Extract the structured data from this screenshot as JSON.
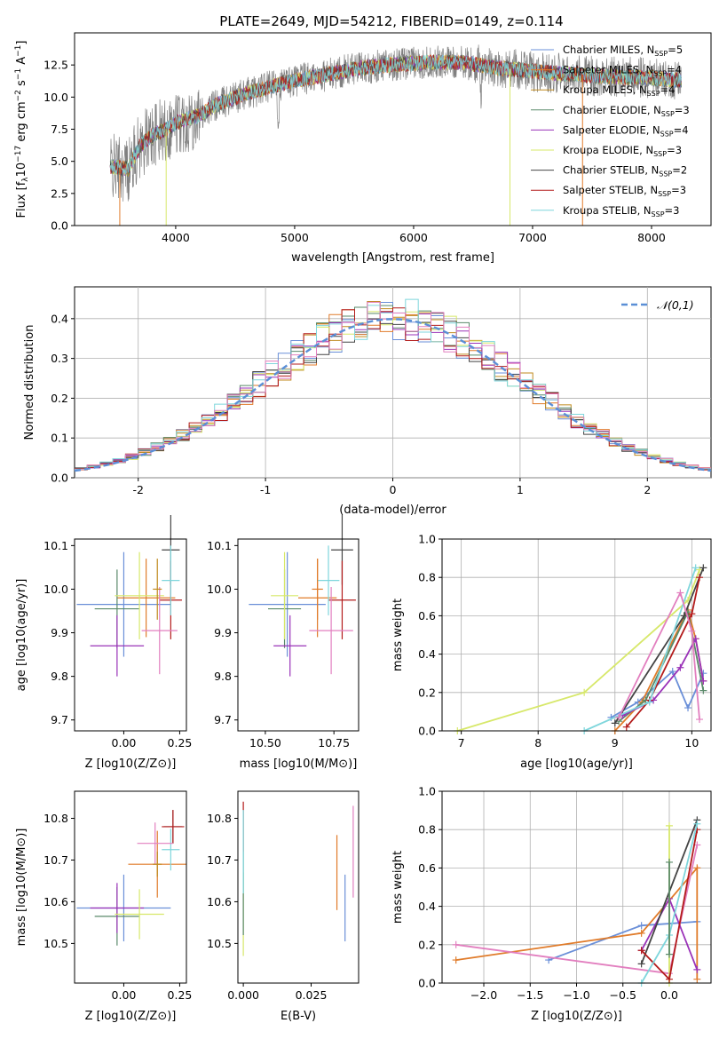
{
  "figure": {
    "title": "PLATE=2649, MJD=54212, FIBERID=0149, z=0.114"
  },
  "models": [
    {
      "label": "Chabrier MILES, N_SSP=5",
      "imf": "Chabrier",
      "lib": "MILES",
      "nssp": 5,
      "color": "#6a8fd8"
    },
    {
      "label": "Salpeter MILES, N_SSP=4",
      "imf": "Salpeter",
      "lib": "MILES",
      "nssp": 4,
      "color": "#e07b2a"
    },
    {
      "label": "Kroupa MILES, N_SSP=4",
      "imf": "Kroupa",
      "lib": "MILES",
      "nssp": 4,
      "color": "#c08a1e"
    },
    {
      "label": "Chabrier ELODIE, N_SSP=3",
      "imf": "Chabrier",
      "lib": "ELODIE",
      "nssp": 3,
      "color": "#5a8a6a"
    },
    {
      "label": "Salpeter ELODIE, N_SSP=4",
      "imf": "Salpeter",
      "lib": "ELODIE",
      "nssp": 4,
      "color": "#9a32b8"
    },
    {
      "label": "Kroupa ELODIE, N_SSP=3",
      "imf": "Kroupa",
      "lib": "ELODIE",
      "nssp": 3,
      "color": "#d7e86a"
    },
    {
      "label": "Chabrier STELIB, N_SSP=2",
      "imf": "Chabrier",
      "lib": "STELIB",
      "nssp": 2,
      "color": "#444444"
    },
    {
      "label": "Salpeter STELIB, N_SSP=3",
      "imf": "Salpeter",
      "lib": "STELIB",
      "nssp": 3,
      "color": "#b31b1b"
    },
    {
      "label": "Kroupa STELIB, N_SSP=3",
      "imf": "Kroupa",
      "lib": "STELIB",
      "nssp": 3,
      "color": "#7fd6dc"
    }
  ],
  "extra_colors": {
    "pink": "#e27fbf",
    "gray": "#808080",
    "dashed": "#5b8fd6"
  },
  "chart_data": [
    {
      "id": "spectrum",
      "type": "line",
      "title": "PLATE=2649, MJD=54212, FIBERID=0149, z=0.114",
      "xlabel": "wavelength [Angstrom, rest frame]",
      "ylabel": "Flux [f_λ 10^-17 erg cm^-2 s^-1 A^-1]",
      "xlim": [
        3150,
        8500
      ],
      "ylim": [
        0,
        15
      ],
      "xticks": [
        4000,
        5000,
        6000,
        7000,
        8000
      ],
      "yticks": [
        "0.0",
        "2.5",
        "5.0",
        "7.5",
        "10.0",
        "12.5"
      ],
      "data_range_x": [
        3450,
        8250
      ],
      "continuum": [
        [
          3450,
          4.6
        ],
        [
          3600,
          4.4
        ],
        [
          3700,
          6.2
        ],
        [
          3800,
          7.0
        ],
        [
          3900,
          7.4
        ],
        [
          4000,
          8.0
        ],
        [
          4100,
          8.3
        ],
        [
          4200,
          8.6
        ],
        [
          4300,
          9.2
        ],
        [
          4400,
          9.6
        ],
        [
          4600,
          10.3
        ],
        [
          4800,
          10.8
        ],
        [
          5000,
          11.3
        ],
        [
          5200,
          11.6
        ],
        [
          5500,
          12.2
        ],
        [
          5800,
          12.5
        ],
        [
          6100,
          12.7
        ],
        [
          6400,
          12.7
        ],
        [
          6700,
          12.3
        ],
        [
          7000,
          12.0
        ],
        [
          7300,
          11.8
        ],
        [
          7600,
          11.6
        ],
        [
          8000,
          11.5
        ],
        [
          8250,
          11.3
        ]
      ],
      "grid": false,
      "legend": "right"
    },
    {
      "id": "residuals",
      "type": "histogram",
      "xlabel": "(data-model)/error",
      "ylabel": "Normed distribution",
      "xlim": [
        -2.5,
        2.5
      ],
      "ylim": [
        0,
        0.48
      ],
      "xticks": [
        -2,
        -1,
        0,
        1,
        2
      ],
      "yticks": [
        "0.0",
        "0.1",
        "0.2",
        "0.3",
        "0.4"
      ],
      "bin_width": 0.1,
      "reference_curve": "N(0,1)",
      "legend_label": "𝒩(0,1)",
      "legend": "top-right",
      "grid": true
    },
    {
      "id": "age_vs_Z",
      "type": "errorbar",
      "xlabel": "Z [log10(Z/Z⊙)]",
      "ylabel": "age [log10(age/yr)]",
      "xlim": [
        -0.22,
        0.28
      ],
      "ylim": [
        9.675,
        10.115
      ],
      "xticks": [
        "0.00",
        "0.25"
      ],
      "yticks": [
        "9.7",
        "9.8",
        "9.9",
        "10.0",
        "10.1"
      ],
      "points": [
        {
          "c": "#6a8fd8",
          "x": 0.0,
          "y": 9.965,
          "xe": 0.21,
          "ye": 0.12
        },
        {
          "c": "#e07b2a",
          "x": 0.1,
          "y": 9.98,
          "xe": 0.13,
          "ye": 0.09
        },
        {
          "c": "#5a8a6a",
          "x": -0.03,
          "y": 9.955,
          "xe": 0.1,
          "ye": 0.09
        },
        {
          "c": "#9a32b8",
          "x": -0.03,
          "y": 9.87,
          "xe": 0.12,
          "ye": 0.07
        },
        {
          "c": "#d7e86a",
          "x": 0.07,
          "y": 9.985,
          "xe": 0.11,
          "ye": 0.1
        },
        {
          "c": "#444444",
          "x": 0.21,
          "y": 10.09,
          "xe": 0.04,
          "ye": 0.08
        },
        {
          "c": "#b31b1b",
          "x": 0.21,
          "y": 9.975,
          "xe": 0.05,
          "ye": 0.09
        },
        {
          "c": "#7fd6dc",
          "x": 0.21,
          "y": 10.02,
          "xe": 0.04,
          "ye": 0.08
        },
        {
          "c": "#e27fbf",
          "x": 0.16,
          "y": 9.905,
          "xe": 0.08,
          "ye": 0.1
        },
        {
          "c": "#c08a1e",
          "x": 0.15,
          "y": 10.0,
          "xe": 0.02,
          "ye": 0.07
        }
      ]
    },
    {
      "id": "age_vs_mass",
      "type": "errorbar",
      "xlabel": "mass [log10(M/M⊙)]",
      "ylabel": "",
      "xlim": [
        10.4,
        10.84
      ],
      "ylim": [
        9.675,
        10.115
      ],
      "xticks": [
        "10.50",
        "10.75"
      ],
      "yticks": [
        "9.7",
        "9.8",
        "9.9",
        "10.0",
        "10.1"
      ],
      "points": [
        {
          "c": "#6a8fd8",
          "x": 10.58,
          "y": 9.965,
          "xe": 0.14,
          "ye": 0.12
        },
        {
          "c": "#e07b2a",
          "x": 10.69,
          "y": 9.98,
          "xe": 0.07,
          "ye": 0.09
        },
        {
          "c": "#5a8a6a",
          "x": 10.57,
          "y": 9.955,
          "xe": 0.06,
          "ye": 0.09
        },
        {
          "c": "#9a32b8",
          "x": 10.59,
          "y": 9.87,
          "xe": 0.06,
          "ye": 0.07
        },
        {
          "c": "#d7e86a",
          "x": 10.57,
          "y": 9.985,
          "xe": 0.05,
          "ye": 0.1
        },
        {
          "c": "#444444",
          "x": 10.78,
          "y": 10.09,
          "xe": 0.04,
          "ye": 0.08
        },
        {
          "c": "#b31b1b",
          "x": 10.78,
          "y": 9.975,
          "xe": 0.05,
          "ye": 0.09
        },
        {
          "c": "#7fd6dc",
          "x": 10.73,
          "y": 10.02,
          "xe": 0.04,
          "ye": 0.08
        },
        {
          "c": "#e27fbf",
          "x": 10.74,
          "y": 9.905,
          "xe": 0.08,
          "ye": 0.1
        },
        {
          "c": "#e07b2a",
          "x": 10.69,
          "y": 10.0,
          "xe": 0.02,
          "ye": 0.07
        }
      ]
    },
    {
      "id": "weight_vs_age",
      "type": "line",
      "xlabel": "age [log10(age/yr)]",
      "ylabel": "mass weight",
      "xlim": [
        6.75,
        10.25
      ],
      "ylim": [
        0,
        1
      ],
      "xticks": [
        "7",
        "8",
        "9",
        "10"
      ],
      "yticks": [
        "0.0",
        "0.2",
        "0.4",
        "0.6",
        "0.8",
        "1.0"
      ],
      "grid": true,
      "series": [
        {
          "c": "#6a8fd8",
          "pts": [
            [
              8.95,
              0.07
            ],
            [
              9.3,
              0.15
            ],
            [
              9.75,
              0.31
            ],
            [
              9.95,
              0.12
            ],
            [
              10.15,
              0.3
            ]
          ]
        },
        {
          "c": "#e07b2a",
          "pts": [
            [
              9.0,
              0.0
            ],
            [
              9.35,
              0.15
            ],
            [
              9.95,
              0.63
            ],
            [
              10.05,
              0.48
            ],
            [
              10.15,
              0.26
            ]
          ]
        },
        {
          "c": "#5a8a6a",
          "pts": [
            [
              9.05,
              0.05
            ],
            [
              9.4,
              0.16
            ],
            [
              9.95,
              0.62
            ],
            [
              10.15,
              0.21
            ]
          ]
        },
        {
          "c": "#9a32b8",
          "pts": [
            [
              9.1,
              0.08
            ],
            [
              9.5,
              0.16
            ],
            [
              9.85,
              0.33
            ],
            [
              10.05,
              0.48
            ],
            [
              10.15,
              0.26
            ]
          ]
        },
        {
          "c": "#d7e86a",
          "pts": [
            [
              6.95,
              0.0
            ],
            [
              8.6,
              0.2
            ],
            [
              9.95,
              0.68
            ],
            [
              10.1,
              0.84
            ]
          ]
        },
        {
          "c": "#444444",
          "pts": [
            [
              9.0,
              0.04
            ],
            [
              9.9,
              0.6
            ],
            [
              10.15,
              0.85
            ]
          ]
        },
        {
          "c": "#b31b1b",
          "pts": [
            [
              9.15,
              0.02
            ],
            [
              9.45,
              0.16
            ],
            [
              10.0,
              0.61
            ],
            [
              10.1,
              0.8
            ]
          ]
        },
        {
          "c": "#7fd6dc",
          "pts": [
            [
              8.6,
              0.0
            ],
            [
              9.45,
              0.15
            ],
            [
              10.05,
              0.85
            ]
          ]
        },
        {
          "c": "#e27fbf",
          "pts": [
            [
              9.05,
              0.07
            ],
            [
              9.85,
              0.72
            ],
            [
              10.0,
              0.52
            ],
            [
              10.1,
              0.06
            ]
          ]
        }
      ]
    },
    {
      "id": "mass_vs_Z",
      "type": "errorbar",
      "xlabel": "Z [log10(Z/Z⊙)]",
      "ylabel": "mass [log10(M/M⊙)]",
      "xlim": [
        -0.22,
        0.28
      ],
      "ylim": [
        10.405,
        10.865
      ],
      "xticks": [
        "0.00",
        "0.25"
      ],
      "yticks": [
        "10.5",
        "10.6",
        "10.7",
        "10.8"
      ],
      "points": [
        {
          "c": "#6a8fd8",
          "x": 0.0,
          "y": 10.585,
          "xe": 0.21,
          "ye": 0.08
        },
        {
          "c": "#e07b2a",
          "x": 0.15,
          "y": 10.69,
          "xe": 0.13,
          "ye": 0.08
        },
        {
          "c": "#5a8a6a",
          "x": -0.03,
          "y": 10.565,
          "xe": 0.1,
          "ye": 0.07
        },
        {
          "c": "#9a32b8",
          "x": -0.03,
          "y": 10.585,
          "xe": 0.12,
          "ye": 0.06
        },
        {
          "c": "#d7e86a",
          "x": 0.07,
          "y": 10.57,
          "xe": 0.11,
          "ye": 0.06
        },
        {
          "c": "#444444",
          "x": 0.22,
          "y": 10.78,
          "xe": 0.04,
          "ye": 0.04
        },
        {
          "c": "#b31b1b",
          "x": 0.22,
          "y": 10.78,
          "xe": 0.05,
          "ye": 0.04
        },
        {
          "c": "#7fd6dc",
          "x": 0.21,
          "y": 10.725,
          "xe": 0.04,
          "ye": 0.05
        },
        {
          "c": "#e27fbf",
          "x": 0.14,
          "y": 10.74,
          "xe": 0.08,
          "ye": 0.05
        },
        {
          "c": "#c08a1e",
          "x": 0.15,
          "y": 10.69,
          "xe": 0.02,
          "ye": 0.03
        }
      ]
    },
    {
      "id": "mass_vs_ebv",
      "type": "errorbar",
      "xlabel": "E(B-V)",
      "ylabel": "",
      "xlim": [
        -0.002,
        0.0425
      ],
      "ylim": [
        10.405,
        10.865
      ],
      "xticks": [
        "0.000",
        "0.025"
      ],
      "yticks": [
        "10.5",
        "10.6",
        "10.7",
        "10.8"
      ],
      "points": [
        {
          "c": "#6a8fd8",
          "x": 0.0375,
          "y": 10.585,
          "xe": 0,
          "ye": 0.08
        },
        {
          "c": "#e07b2a",
          "x": 0.0345,
          "y": 10.67,
          "xe": 0,
          "ye": 0.09
        },
        {
          "c": "#e27fbf",
          "x": 0.0405,
          "y": 10.72,
          "xe": 0,
          "ye": 0.11
        },
        {
          "c": "#d7e86a",
          "x": 0.0,
          "y": 10.57,
          "xe": 0,
          "ye": 0.1
        },
        {
          "c": "#5a8a6a",
          "x": 0.0,
          "y": 10.62,
          "xe": 0,
          "ye": 0.1
        },
        {
          "c": "#b31b1b",
          "x": 0.0,
          "y": 10.78,
          "xe": 0,
          "ye": 0.06
        },
        {
          "c": "#7fd6dc",
          "x": 0.0,
          "y": 10.72,
          "xe": 0,
          "ye": 0.1
        }
      ]
    },
    {
      "id": "weight_vs_Z",
      "type": "line",
      "xlabel": "Z [log10(Z/Z⊙)]",
      "ylabel": "mass weight",
      "xlim": [
        -2.45,
        0.45
      ],
      "ylim": [
        0,
        1
      ],
      "xticks": [
        "−2.0",
        "−1.5",
        "−1.0",
        "−0.5",
        "0.0"
      ],
      "yticks": [
        "0.0",
        "0.2",
        "0.4",
        "0.6",
        "0.8",
        "1.0"
      ],
      "grid": true,
      "series": [
        {
          "c": "#6a8fd8",
          "pts": [
            [
              -1.3,
              0.12
            ],
            [
              -0.3,
              0.3
            ],
            [
              0.3,
              0.32
            ]
          ]
        },
        {
          "c": "#e07b2a",
          "pts": [
            [
              -2.3,
              0.12
            ],
            [
              -0.3,
              0.26
            ],
            [
              0.3,
              0.6
            ],
            [
              0.3,
              0.02
            ]
          ]
        },
        {
          "c": "#e27fbf",
          "pts": [
            [
              -2.3,
              0.2
            ],
            [
              0.0,
              0.05
            ],
            [
              0.3,
              0.72
            ]
          ]
        },
        {
          "c": "#9a32b8",
          "pts": [
            [
              -0.3,
              0.17
            ],
            [
              0.0,
              0.44
            ],
            [
              0.3,
              0.07
            ]
          ]
        },
        {
          "c": "#d7e86a",
          "pts": [
            [
              0.0,
              0.82
            ],
            [
              0.0,
              0.0
            ]
          ]
        },
        {
          "c": "#444444",
          "pts": [
            [
              -0.3,
              0.1
            ],
            [
              0.3,
              0.85
            ]
          ]
        },
        {
          "c": "#b31b1b",
          "pts": [
            [
              -0.3,
              0.17
            ],
            [
              0.0,
              0.02
            ],
            [
              0.3,
              0.8
            ]
          ]
        },
        {
          "c": "#7fd6dc",
          "pts": [
            [
              -0.3,
              0.0
            ],
            [
              0.0,
              0.25
            ],
            [
              0.3,
              0.83
            ]
          ]
        },
        {
          "c": "#5a8a6a",
          "pts": [
            [
              0.0,
              0.63
            ],
            [
              0.0,
              0.15
            ]
          ]
        }
      ]
    }
  ]
}
